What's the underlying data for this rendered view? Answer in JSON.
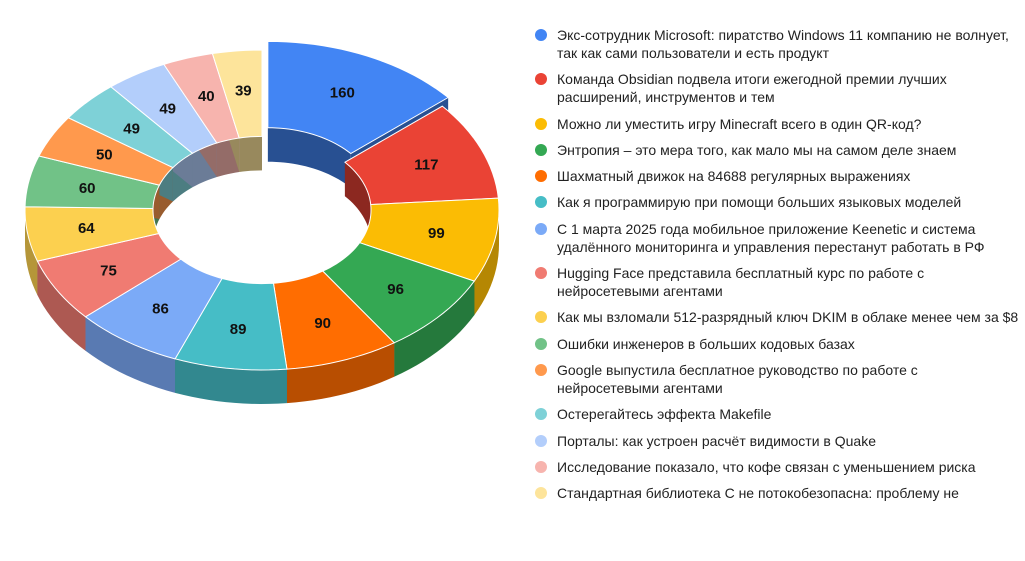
{
  "chart_data": {
    "type": "pie",
    "style": "3d-donut",
    "title": "",
    "legend_position": "right",
    "exploded_slice": 0,
    "categories": [
      "Экс-сотрудник Microsoft: пиратство Windows 11 компанию не волнует, так как сами пользователи и есть продукт",
      "Команда Obsidian подвела итоги ежегодной премии лучших расширений, инструментов и тем",
      "Можно ли уместить игру Minecraft всего в один QR-код?",
      "Энтропия – это мера того, как мало мы на самом деле знаем",
      "Шахматный движок на 84688 регулярных выражениях",
      "Как я программирую при помощи больших языковых моделей",
      "С 1 марта 2025 года мобильное приложение Keenetic и система удалённого мониторинга и управления перестанут работать в РФ",
      "Hugging Face представила бесплатный курс по работе с нейросетевыми агентами",
      "Как мы взломали 512-разрядный ключ DKIM в облаке менее чем за $8",
      "Ошибки инженеров в больших кодовых базах",
      "Google выпустила бесплатное руководство по работе с нейросетевыми агентами",
      "Остерегайтесь эффекта Makefile",
      "Порталы: как устроен расчёт видимости в Quake",
      "Исследование показало, что кофе связан с уменьшением риска",
      "Стандартная библиотека C не потокобезопасна: проблему не"
    ],
    "values": [
      160,
      117,
      99,
      96,
      90,
      89,
      86,
      75,
      64,
      60,
      50,
      49,
      49,
      40,
      39
    ],
    "colors": [
      "#4285F4",
      "#EA4335",
      "#FBBC04",
      "#34A853",
      "#FF6D01",
      "#46BDC6",
      "#7BAAF7",
      "#F07B72",
      "#FCD04F",
      "#71C287",
      "#FF994D",
      "#7ED1D7",
      "#B3CEFB",
      "#F7B4AE",
      "#FDE49B"
    ]
  }
}
